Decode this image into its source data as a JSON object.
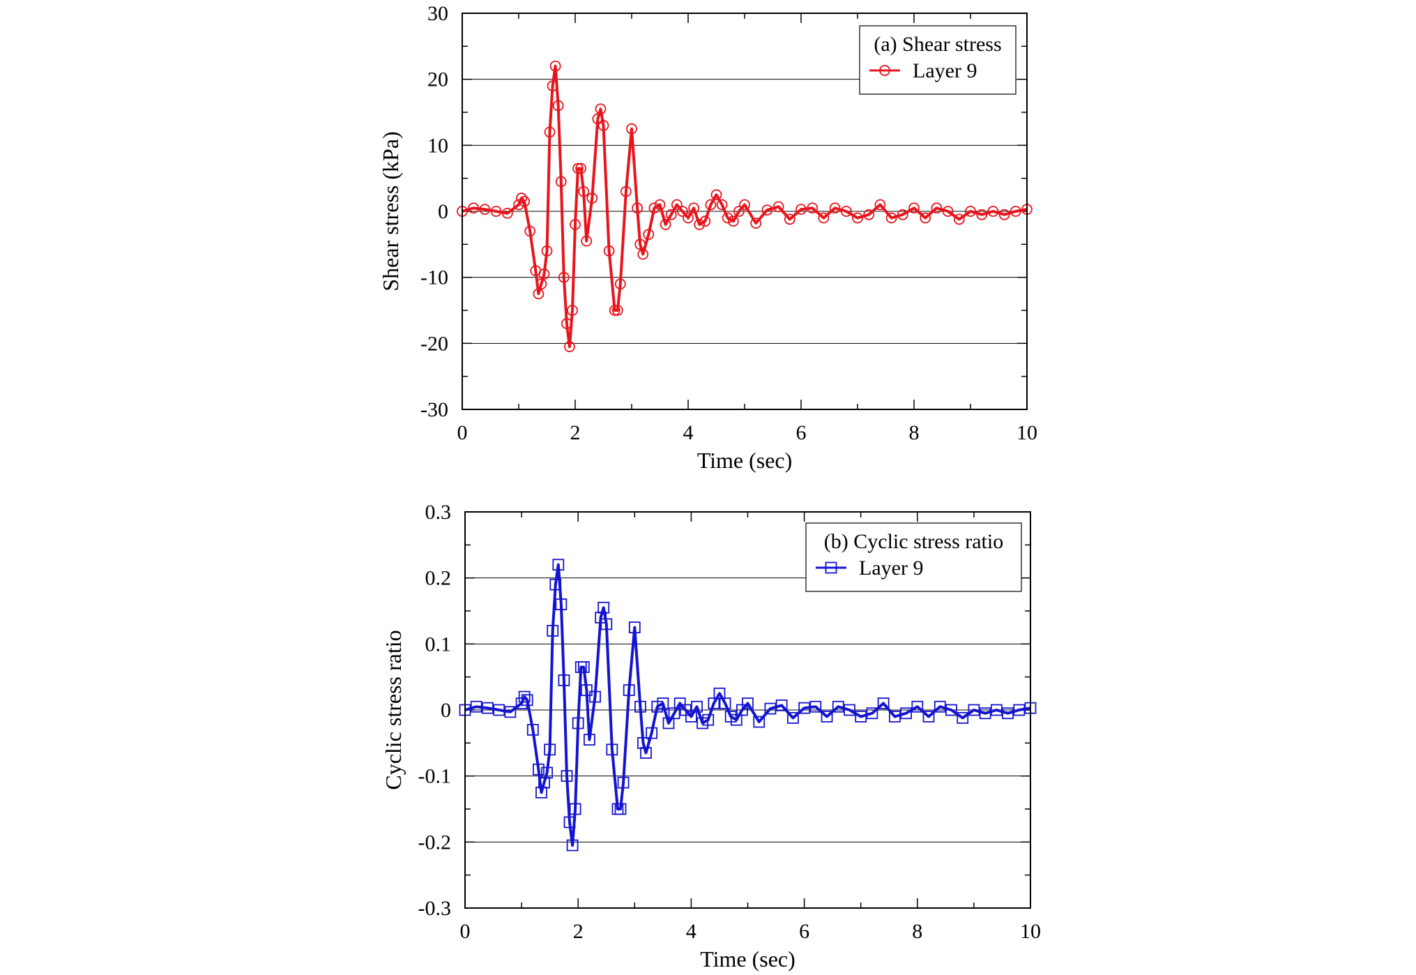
{
  "chart_data": [
    {
      "type": "line",
      "xlabel": "Time (sec)",
      "ylabel": "Shear stress (kPa)",
      "xlim": [
        0,
        10
      ],
      "ylim": [
        -30,
        30
      ],
      "xticks": [
        "0",
        "2",
        "4",
        "6",
        "8",
        "10"
      ],
      "yticks": [
        "-30",
        "-20",
        "-10",
        "0",
        "10",
        "20",
        "30"
      ],
      "grid": "horizontal",
      "legend": {
        "placement": "top-right",
        "title": "(a) Shear stress"
      },
      "series": [
        {
          "name": "Layer 9",
          "color": "#e8141c",
          "marker": "circle",
          "x": [
            0.0,
            0.2,
            0.4,
            0.6,
            0.8,
            1.0,
            1.05,
            1.1,
            1.2,
            1.3,
            1.35,
            1.4,
            1.45,
            1.5,
            1.55,
            1.6,
            1.65,
            1.7,
            1.75,
            1.8,
            1.85,
            1.9,
            1.95,
            2.0,
            2.05,
            2.1,
            2.15,
            2.2,
            2.3,
            2.4,
            2.45,
            2.5,
            2.6,
            2.7,
            2.75,
            2.8,
            2.9,
            3.0,
            3.1,
            3.15,
            3.2,
            3.3,
            3.4,
            3.5,
            3.6,
            3.7,
            3.8,
            3.9,
            4.0,
            4.1,
            4.2,
            4.3,
            4.4,
            4.5,
            4.6,
            4.7,
            4.8,
            4.9,
            5.0,
            5.2,
            5.4,
            5.6,
            5.8,
            6.0,
            6.2,
            6.4,
            6.6,
            6.8,
            7.0,
            7.2,
            7.4,
            7.6,
            7.8,
            8.0,
            8.2,
            8.4,
            8.6,
            8.8,
            9.0,
            9.2,
            9.4,
            9.6,
            9.8,
            10.0
          ],
          "values": [
            0.0,
            0.5,
            0.3,
            0.0,
            -0.3,
            1.0,
            2.0,
            1.5,
            -3.0,
            -9.0,
            -12.5,
            -11.0,
            -9.5,
            -6.0,
            12.0,
            19.0,
            22.0,
            16.0,
            4.5,
            -10.0,
            -17.0,
            -20.5,
            -15.0,
            -2.0,
            6.5,
            6.5,
            3.0,
            -4.5,
            2.0,
            14.0,
            15.5,
            13.0,
            -6.0,
            -15.0,
            -15.0,
            -11.0,
            3.0,
            12.5,
            0.5,
            -5.0,
            -6.5,
            -3.5,
            0.5,
            1.0,
            -2.0,
            -0.5,
            1.0,
            0.0,
            -1.0,
            0.5,
            -2.0,
            -1.5,
            1.0,
            2.5,
            1.0,
            -1.0,
            -1.5,
            0.0,
            1.0,
            -1.8,
            0.2,
            0.7,
            -1.2,
            0.3,
            0.5,
            -1.0,
            0.5,
            0.0,
            -1.0,
            -0.5,
            1.0,
            -1.0,
            -0.5,
            0.5,
            -1.0,
            0.5,
            0.0,
            -1.2,
            0.0,
            -0.5,
            0.0,
            -0.5,
            0.0,
            0.3
          ]
        }
      ]
    },
    {
      "type": "line",
      "xlabel": "Time (sec)",
      "ylabel": "Cyclic stress ratio",
      "xlim": [
        0,
        10
      ],
      "ylim": [
        -0.3,
        0.3
      ],
      "xticks": [
        "0",
        "2",
        "4",
        "6",
        "8",
        "10"
      ],
      "yticks": [
        "-0.3",
        "-0.2",
        "-0.1",
        "0",
        "0.1",
        "0.2",
        "0.3"
      ],
      "grid": "horizontal",
      "legend": {
        "placement": "top-right",
        "title": "(b) Cyclic stress ratio"
      },
      "series": [
        {
          "name": "Layer 9",
          "color": "#1414d0",
          "marker": "square",
          "x": [
            0.0,
            0.2,
            0.4,
            0.6,
            0.8,
            1.0,
            1.05,
            1.1,
            1.2,
            1.3,
            1.35,
            1.4,
            1.45,
            1.5,
            1.55,
            1.6,
            1.65,
            1.7,
            1.75,
            1.8,
            1.85,
            1.9,
            1.95,
            2.0,
            2.05,
            2.1,
            2.15,
            2.2,
            2.3,
            2.4,
            2.45,
            2.5,
            2.6,
            2.7,
            2.75,
            2.8,
            2.9,
            3.0,
            3.1,
            3.15,
            3.2,
            3.3,
            3.4,
            3.5,
            3.6,
            3.7,
            3.8,
            3.9,
            4.0,
            4.1,
            4.2,
            4.3,
            4.4,
            4.5,
            4.6,
            4.7,
            4.8,
            4.9,
            5.0,
            5.2,
            5.4,
            5.6,
            5.8,
            6.0,
            6.2,
            6.4,
            6.6,
            6.8,
            7.0,
            7.2,
            7.4,
            7.6,
            7.8,
            8.0,
            8.2,
            8.4,
            8.6,
            8.8,
            9.0,
            9.2,
            9.4,
            9.6,
            9.8,
            10.0
          ],
          "values": [
            0.0,
            0.005,
            0.003,
            0.0,
            -0.003,
            0.01,
            0.02,
            0.015,
            -0.03,
            -0.09,
            -0.125,
            -0.11,
            -0.095,
            -0.06,
            0.12,
            0.19,
            0.22,
            0.16,
            0.045,
            -0.1,
            -0.17,
            -0.205,
            -0.15,
            -0.02,
            0.065,
            0.065,
            0.03,
            -0.045,
            0.02,
            0.14,
            0.155,
            0.13,
            -0.06,
            -0.15,
            -0.15,
            -0.11,
            0.03,
            0.125,
            0.005,
            -0.05,
            -0.065,
            -0.035,
            0.005,
            0.01,
            -0.02,
            -0.005,
            0.01,
            0.0,
            -0.01,
            0.005,
            -0.02,
            -0.015,
            0.01,
            0.025,
            0.01,
            -0.01,
            -0.015,
            0.0,
            0.01,
            -0.018,
            0.002,
            0.007,
            -0.012,
            0.003,
            0.005,
            -0.01,
            0.005,
            0.0,
            -0.01,
            -0.005,
            0.01,
            -0.01,
            -0.005,
            0.005,
            -0.01,
            0.005,
            0.0,
            -0.012,
            0.0,
            -0.005,
            0.0,
            -0.005,
            0.0,
            0.003
          ]
        }
      ]
    }
  ]
}
